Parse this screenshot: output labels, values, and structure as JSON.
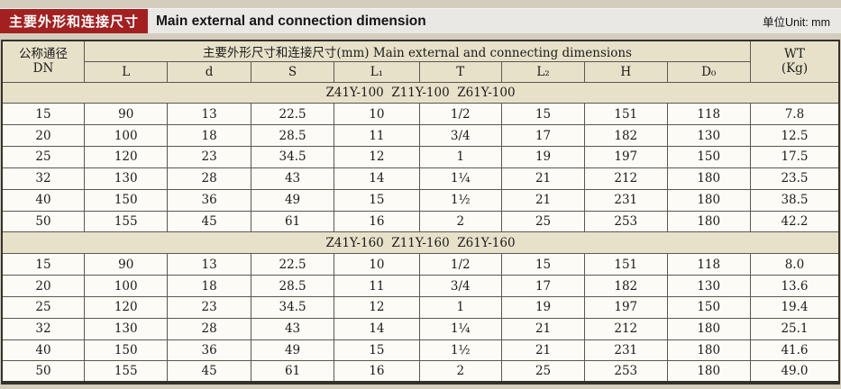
{
  "page": {
    "title_zh": "主要外形和连接尺寸",
    "title_en": "Main external and connection dimension",
    "unit_label": "单位Unit: mm"
  },
  "colors": {
    "page_background": "#d4cdbd",
    "title_bar_background": "#eae8e4",
    "title_box_red": "#a32020",
    "table_header_beige": "#e7e1ca",
    "row_background": "#fcfbf6",
    "border": "#5b584f"
  },
  "table": {
    "dn_header": {
      "line1": "公称通径",
      "line2": "DN"
    },
    "group_header": "主要外形尺寸和连接尺寸(mm) Main external and connecting dimensions",
    "sub_headers": [
      "L",
      "d",
      "S",
      "L₁",
      "T",
      "L₂",
      "H",
      "D₀"
    ],
    "wt_header": {
      "line1": "WT",
      "line2": "(Kg)"
    },
    "sections": [
      {
        "model_label": "Z41Y-100  Z11Y-100  Z61Y-100",
        "rows": [
          [
            "15",
            "90",
            "13",
            "22.5",
            "10",
            "1/2",
            "15",
            "151",
            "118",
            "7.8"
          ],
          [
            "20",
            "100",
            "18",
            "28.5",
            "11",
            "3/4",
            "17",
            "182",
            "130",
            "12.5"
          ],
          [
            "25",
            "120",
            "23",
            "34.5",
            "12",
            "1",
            "19",
            "197",
            "150",
            "17.5"
          ],
          [
            "32",
            "130",
            "28",
            "43",
            "14",
            "1¼",
            "21",
            "212",
            "180",
            "23.5"
          ],
          [
            "40",
            "150",
            "36",
            "49",
            "15",
            "1½",
            "21",
            "231",
            "180",
            "38.5"
          ],
          [
            "50",
            "155",
            "45",
            "61",
            "16",
            "2",
            "25",
            "253",
            "180",
            "42.2"
          ]
        ]
      },
      {
        "model_label": "Z41Y-160  Z11Y-160  Z61Y-160",
        "rows": [
          [
            "15",
            "90",
            "13",
            "22.5",
            "10",
            "1/2",
            "15",
            "151",
            "118",
            "8.0"
          ],
          [
            "20",
            "100",
            "18",
            "28.5",
            "11",
            "3/4",
            "17",
            "182",
            "130",
            "13.6"
          ],
          [
            "25",
            "120",
            "23",
            "34.5",
            "12",
            "1",
            "19",
            "197",
            "150",
            "19.4"
          ],
          [
            "32",
            "130",
            "28",
            "43",
            "14",
            "1¼",
            "21",
            "212",
            "180",
            "25.1"
          ],
          [
            "40",
            "150",
            "36",
            "49",
            "15",
            "1½",
            "21",
            "231",
            "180",
            "41.6"
          ],
          [
            "50",
            "155",
            "45",
            "61",
            "16",
            "2",
            "25",
            "253",
            "180",
            "49.0"
          ]
        ]
      }
    ]
  }
}
